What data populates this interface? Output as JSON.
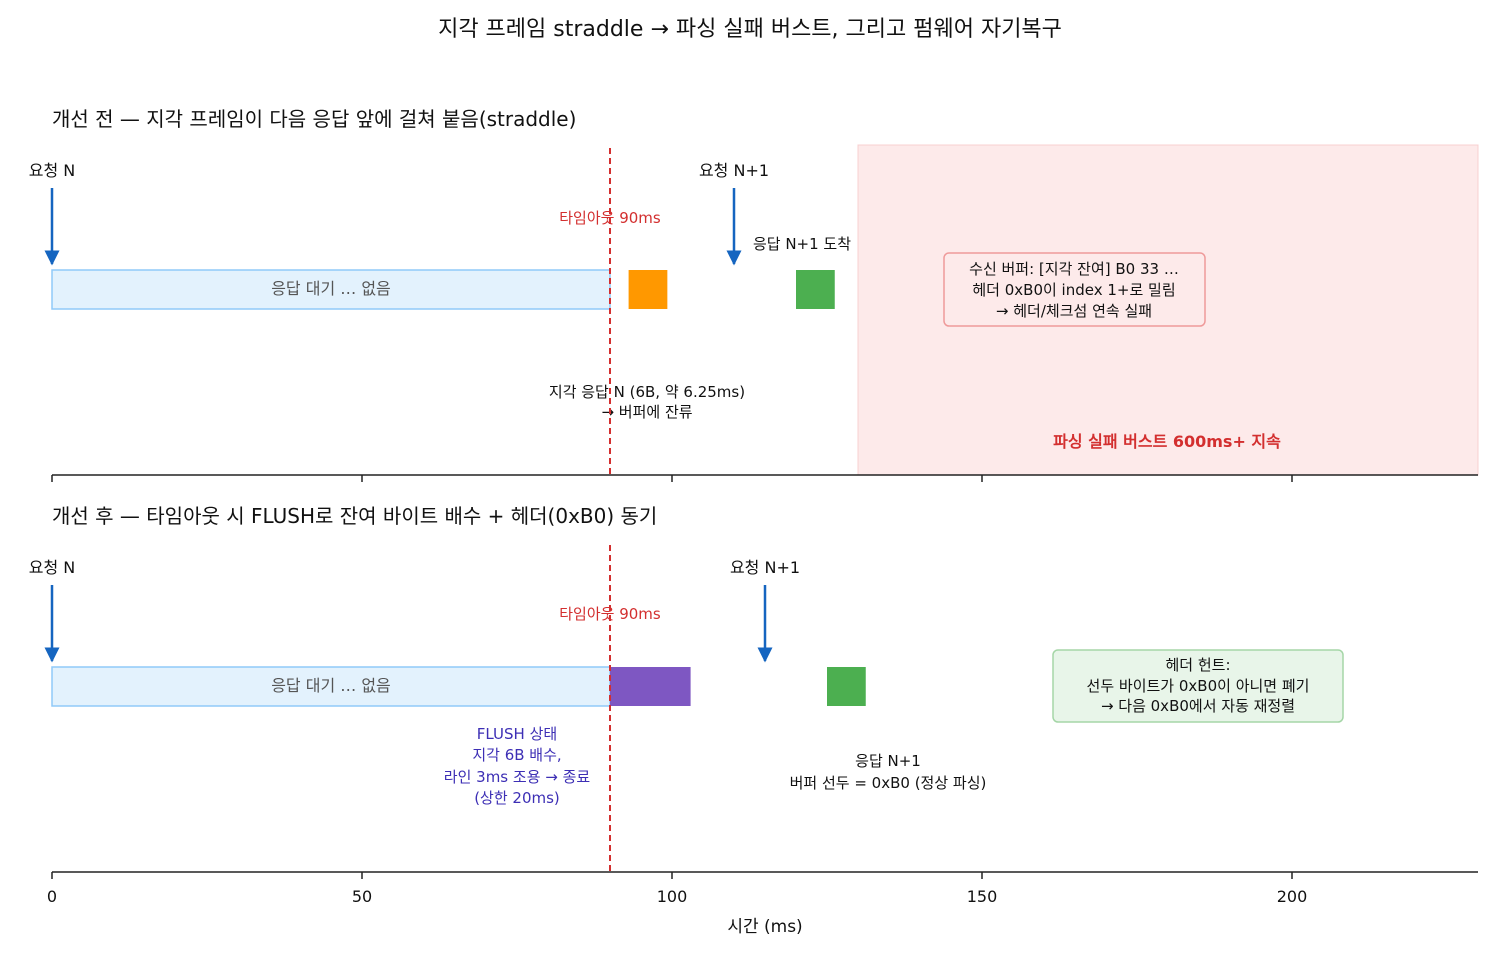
{
  "title": "지각 프레임 straddle → 파싱 실패 버스트, 그리고 펌웨어 자기복구",
  "colors": {
    "request_arrow": "#1565c0",
    "timeout_line": "#d32f2f",
    "wait_fill": "#e3f2fd",
    "wait_stroke": "#90caf9",
    "late_frame": "#ff9800",
    "response_frame": "#4caf50",
    "flush": "#7e57c2",
    "burst_fill": "#fdeaea",
    "error_box_stroke": "#ef9a9a",
    "ok_box_fill": "#e8f5e9",
    "ok_box_stroke": "#a5d6a7"
  },
  "panels": {
    "before": {
      "title": "개선 전 — 지각 프레임이 다음 응답 앞에 걸쳐 붙음(straddle)",
      "request_n": "요청 N",
      "request_n1": "요청 N+1",
      "timeout": "타임아웃 90ms",
      "wait": "응답 대기 … 없음",
      "response_arrival": "응답 N+1 도착",
      "late_response": [
        "지각 응답 N (6B, 약 6.25ms)",
        "→ 버퍼에 잔류"
      ],
      "buffer_box": [
        "수신 버퍼: [지각 잔여] B0 33 …",
        "헤더 0xB0이 index 1+로 밀림",
        "→ 헤더/체크섬 연속 실패"
      ],
      "burst_label": "파싱 실패 버스트 600ms+ 지속"
    },
    "after": {
      "title": "개선 후 — 타임아웃 시 FLUSH로 잔여 바이트 배수 + 헤더(0xB0) 동기",
      "request_n": "요청 N",
      "request_n1": "요청 N+1",
      "timeout": "타임아웃 90ms",
      "wait": "응답 대기 … 없음",
      "flush_label": [
        "FLUSH 상태",
        "지각 6B 배수,",
        "라인 3ms 조용 → 종료",
        "(상한 20ms)"
      ],
      "response_label": [
        "응답 N+1",
        "버퍼 선두 = 0xB0 (정상 파싱)"
      ],
      "header_box": [
        "헤더 헌트:",
        "선두 바이트가 0xB0이 아니면 폐기",
        "→ 다음 0xB0에서 자동 재정렬"
      ]
    }
  },
  "chart_data": {
    "type": "timeline",
    "x_unit": "ms",
    "xlim": [
      0,
      230
    ],
    "xticks": [
      "0",
      "50",
      "100",
      "150",
      "200"
    ],
    "xlabel": "시간 (ms)",
    "before": {
      "request_n_ms": 0,
      "request_n1_ms": 110,
      "timeout_ms": 90,
      "wait": [
        0,
        90
      ],
      "late_frame": [
        93,
        99.25
      ],
      "response_n1": [
        120,
        126.25
      ],
      "burst": [
        130,
        230
      ]
    },
    "after": {
      "request_n_ms": 0,
      "request_n1_ms": 115,
      "timeout_ms": 90,
      "wait": [
        0,
        90
      ],
      "flush": [
        90,
        103
      ],
      "response_n1": [
        125,
        131.25
      ]
    }
  }
}
